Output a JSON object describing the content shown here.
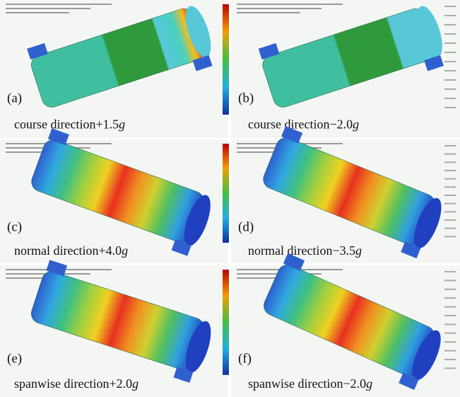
{
  "panels": [
    {
      "label": "(a)",
      "caption": "course direction+1.5",
      "variable": "g"
    },
    {
      "label": "(b)",
      "caption": "course direction−2.0",
      "variable": "g"
    },
    {
      "label": "(c)",
      "caption": "normal direction+4.0",
      "variable": "g"
    },
    {
      "label": "(d)",
      "caption": "normal direction−3.5",
      "variable": "g"
    },
    {
      "label": "(e)",
      "caption": "spanwise direction+2.0",
      "variable": "g"
    },
    {
      "label": "(f)",
      "caption": "spanwise direction−2.0",
      "variable": "g"
    }
  ]
}
